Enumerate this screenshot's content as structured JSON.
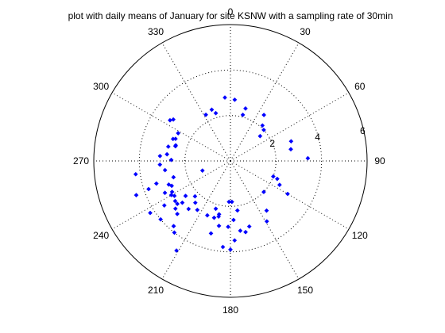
{
  "chart_data": {
    "type": "scatter",
    "coordinate_system": "polar",
    "title": "plot with daily means of January for site KSNW with a sampling rate of 30min",
    "angle_ticks": [
      "0",
      "30",
      "60",
      "90",
      "120",
      "150",
      "180",
      "210",
      "240",
      "270",
      "300",
      "330"
    ],
    "angle_tick_values_deg": [
      0,
      30,
      60,
      90,
      120,
      150,
      180,
      210,
      240,
      270,
      300,
      330
    ],
    "angle_zero": "top",
    "angle_direction": "clockwise",
    "radial_ticks": [
      "2",
      "4",
      "6"
    ],
    "radial_tick_values": [
      2,
      4,
      6
    ],
    "r_max": 6,
    "grid": true,
    "marker": "diamond",
    "marker_color": "#0000ff",
    "series": [
      {
        "points_deg_r": [
          [
            355,
            2.8
          ],
          [
            4,
            2.7
          ],
          [
            16,
            2.4
          ],
          [
            340,
            2.4
          ],
          [
            332,
            2.3
          ],
          [
            343,
            2.2
          ],
          [
            15,
            2.1
          ],
          [
            36,
            2.5
          ],
          [
            42,
            2.1
          ],
          [
            47,
            2.0
          ],
          [
            50,
            1.7
          ],
          [
            72,
            2.8
          ],
          [
            79,
            2.7
          ],
          [
            88,
            3.4
          ],
          [
            110,
            2.0
          ],
          [
            111,
            2.2
          ],
          [
            116,
            2.4
          ],
          [
            120,
            2.9
          ],
          [
            133,
            2.0
          ],
          [
            144,
            2.7
          ],
          [
            149,
            3.1
          ],
          [
            178,
            1.8
          ],
          [
            182,
            1.8
          ],
          [
            172,
            2.2
          ],
          [
            177,
            2.6
          ],
          [
            182,
            2.9
          ],
          [
            172,
            3.1
          ],
          [
            164,
            3.0
          ],
          [
            168,
            3.2
          ],
          [
            177,
            3.5
          ],
          [
            180,
            3.9
          ],
          [
            185,
            3.8
          ],
          [
            195,
            3.3
          ],
          [
            190,
            2.9
          ],
          [
            192,
            2.5
          ],
          [
            196,
            2.6
          ],
          [
            192,
            2.4
          ],
          [
            197,
            2.2
          ],
          [
            203,
            2.6
          ],
          [
            214,
            2.6
          ],
          [
            220,
            2.4
          ],
          [
            225,
            2.2
          ],
          [
            232,
            2.5
          ],
          [
            221,
            2.8
          ],
          [
            229,
            2.8
          ],
          [
            225,
            3.3
          ],
          [
            229,
            3.2
          ],
          [
            231,
            3.0
          ],
          [
            234,
            3.0
          ],
          [
            238,
            2.9
          ],
          [
            240,
            3.0
          ],
          [
            236,
            3.5
          ],
          [
            211,
            4.6
          ],
          [
            218,
            4.0
          ],
          [
            221,
            3.8
          ],
          [
            230,
            4.0
          ],
          [
            237,
            4.2
          ],
          [
            242,
            2.9
          ],
          [
            247,
            2.8
          ],
          [
            244,
            3.2
          ],
          [
            253,
            3.4
          ],
          [
            262,
            4.2
          ],
          [
            251,
            3.8
          ],
          [
            250,
            4.4
          ],
          [
            249,
            2.9
          ],
          [
            254,
            2.6
          ],
          [
            262,
            2.9
          ],
          [
            267,
            3.1
          ],
          [
            276,
            2.8
          ],
          [
            271,
            2.6
          ],
          [
            283,
            2.8
          ],
          [
            291,
            2.7
          ],
          [
            286,
            2.5
          ],
          [
            292,
            2.6
          ],
          [
            298,
            2.6
          ],
          [
            304,
            3.2
          ],
          [
            306,
            3.1
          ],
          [
            285,
            2.5
          ],
          [
            274,
            3.1
          ],
          [
            251,
            1.3
          ]
        ]
      }
    ]
  }
}
